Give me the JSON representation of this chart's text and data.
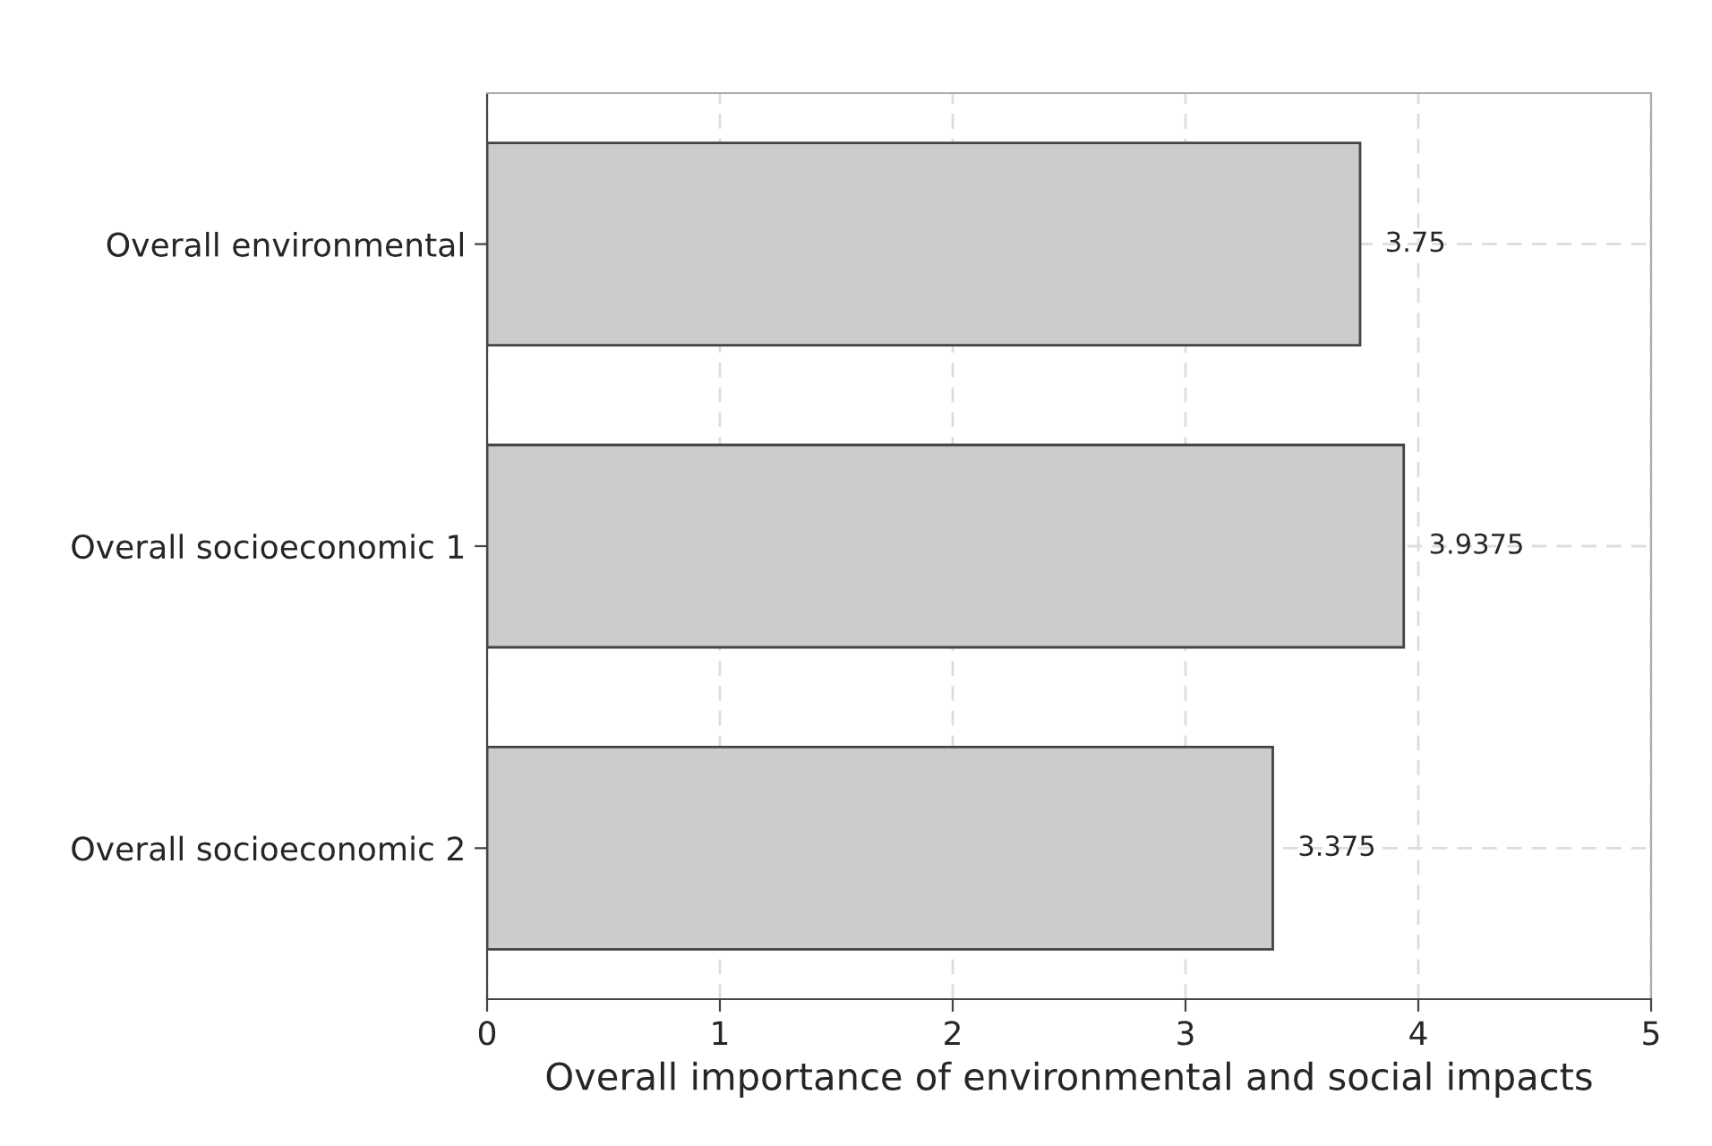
{
  "chart_data": {
    "type": "bar",
    "orientation": "horizontal",
    "xlabel": "Overall importance of environmental and social impacts",
    "categories": [
      "Overall environmental",
      "Overall socioeconomic 1",
      "Overall socioeconomic 2"
    ],
    "values": [
      3.75,
      3.9375,
      3.375
    ],
    "color": "#cccccc",
    "xlim": [
      0,
      5
    ],
    "xticks": [
      0,
      1,
      2,
      3,
      4,
      5
    ],
    "grid": true,
    "data_labels": true
  }
}
